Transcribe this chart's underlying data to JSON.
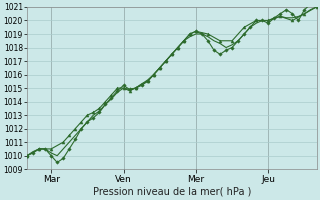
{
  "xlabel": "Pression niveau de la mer( hPa )",
  "ylim": [
    1009,
    1021
  ],
  "xlim": [
    0,
    144
  ],
  "yticks": [
    1009,
    1010,
    1011,
    1012,
    1013,
    1014,
    1015,
    1016,
    1017,
    1018,
    1019,
    1020,
    1021
  ],
  "xtick_positions": [
    12,
    48,
    84,
    120
  ],
  "xtick_labels": [
    "Mar",
    "Ven",
    "Mer",
    "Jeu"
  ],
  "vline_positions": [
    12,
    48,
    84,
    120
  ],
  "bg_color": "#cce8e8",
  "grid_color": "#aacccc",
  "line_color": "#2d6b2d",
  "line1_x": [
    0,
    3,
    6,
    9,
    12,
    15,
    18,
    21,
    24,
    27,
    30,
    33,
    36,
    39,
    42,
    45,
    48,
    51,
    54,
    57,
    60,
    63,
    66,
    69,
    72,
    75,
    78,
    81,
    84,
    87,
    90,
    93,
    96,
    99,
    102,
    105,
    108,
    111,
    114,
    117,
    120,
    123,
    126,
    129,
    132,
    135,
    138,
    141,
    144
  ],
  "line1_y": [
    1010.0,
    1010.3,
    1010.5,
    1010.5,
    1010.2,
    1010.0,
    1010.5,
    1011.0,
    1011.5,
    1012.0,
    1012.5,
    1013.0,
    1013.3,
    1013.8,
    1014.2,
    1014.7,
    1015.0,
    1014.9,
    1015.0,
    1015.3,
    1015.6,
    1016.0,
    1016.5,
    1017.0,
    1017.5,
    1018.0,
    1018.5,
    1018.8,
    1019.0,
    1019.0,
    1018.8,
    1018.5,
    1018.3,
    1018.0,
    1018.2,
    1018.5,
    1019.0,
    1019.5,
    1019.8,
    1020.0,
    1020.0,
    1020.2,
    1020.3,
    1020.2,
    1020.2,
    1020.3,
    1020.5,
    1020.8,
    1021.0
  ],
  "line2_x": [
    0,
    6,
    12,
    18,
    21,
    24,
    27,
    30,
    33,
    36,
    39,
    42,
    45,
    48,
    51,
    54,
    57,
    60,
    63,
    66,
    69,
    72,
    75,
    78,
    81,
    84,
    90,
    96,
    102,
    108,
    114,
    120,
    126,
    132,
    138,
    144
  ],
  "line2_y": [
    1010.0,
    1010.5,
    1010.5,
    1011.0,
    1011.5,
    1012.0,
    1012.5,
    1013.0,
    1013.2,
    1013.5,
    1014.0,
    1014.5,
    1015.0,
    1015.0,
    1014.8,
    1015.0,
    1015.3,
    1015.5,
    1016.0,
    1016.5,
    1017.0,
    1017.5,
    1018.0,
    1018.5,
    1019.0,
    1019.2,
    1019.0,
    1018.5,
    1018.5,
    1019.5,
    1020.0,
    1020.0,
    1020.3,
    1020.0,
    1020.5,
    1021.0
  ],
  "line3_x": [
    0,
    3,
    6,
    9,
    12,
    15,
    18,
    21,
    24,
    27,
    30,
    33,
    36,
    39,
    42,
    45,
    48,
    51,
    54,
    57,
    60,
    63,
    66,
    69,
    72,
    75,
    78,
    81,
    84,
    87,
    90,
    93,
    96,
    99,
    102,
    105,
    108,
    111,
    114,
    117,
    120,
    123,
    126,
    129,
    132,
    135,
    138,
    141
  ],
  "line3_y": [
    1010.0,
    1010.2,
    1010.5,
    1010.5,
    1010.0,
    1009.5,
    1009.8,
    1010.5,
    1011.2,
    1012.0,
    1012.5,
    1012.8,
    1013.2,
    1013.8,
    1014.3,
    1014.8,
    1015.2,
    1014.9,
    1015.0,
    1015.2,
    1015.5,
    1016.0,
    1016.5,
    1017.0,
    1017.5,
    1018.0,
    1018.5,
    1019.0,
    1019.2,
    1019.0,
    1018.5,
    1017.8,
    1017.5,
    1017.8,
    1018.0,
    1018.5,
    1019.0,
    1019.5,
    1020.0,
    1020.0,
    1019.8,
    1020.2,
    1020.5,
    1020.8,
    1020.5,
    1020.0,
    1020.8,
    1021.2
  ]
}
